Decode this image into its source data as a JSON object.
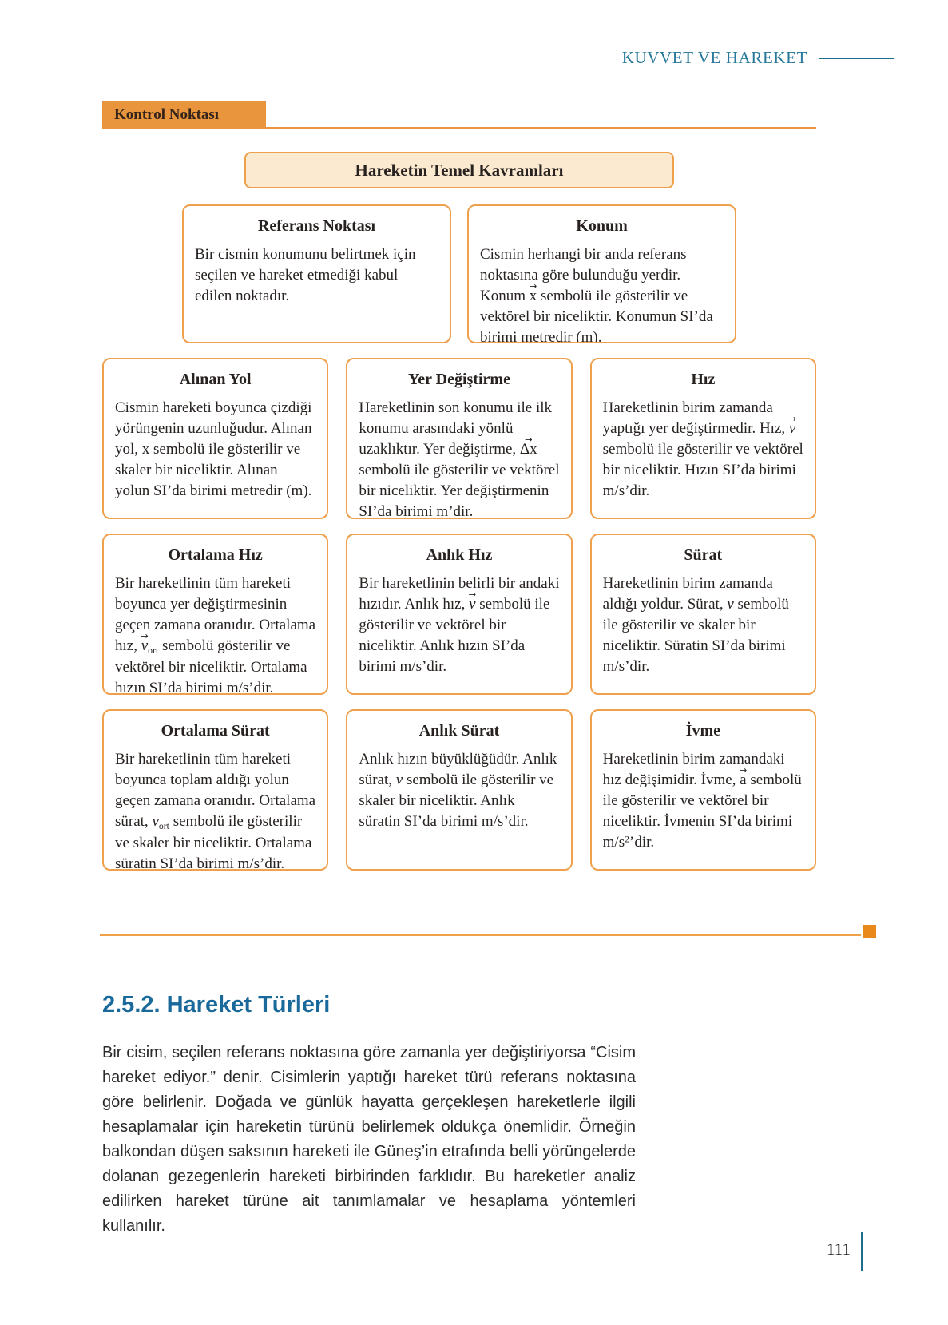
{
  "header": {
    "chapter_title": "KUVVET VE HAREKET"
  },
  "control_point": {
    "label": "Kontrol Noktası"
  },
  "concept_map": {
    "title": "Hareketin Temel Kavramları",
    "boxes": [
      {
        "title": "Referans Noktası",
        "desc": [
          {
            "t": "Bir cismin konumunu belirtmek için seçilen ve hareket etmediği kabul edilen noktadır."
          }
        ]
      },
      {
        "title": "Konum",
        "desc": [
          {
            "t": "Cismin herhangi bir anda referans noktasına göre bulunduğu yerdir. Konum "
          },
          {
            "t": "x",
            "s": "vec"
          },
          {
            "t": " sembolü ile gösterilir ve vektörel bir niceliktir. Konumun SI’da birimi metredir (m)."
          }
        ]
      },
      {
        "title": "Alınan Yol",
        "desc": [
          {
            "t": "Cismin hareketi boyunca çizdiği yörüngenin uzunluğudur. Alınan yol, x sembolü ile gösterilir ve skaler bir niceliktir. Alınan yolun SI’da birimi metredir (m)."
          }
        ]
      },
      {
        "title": "Yer Değiştirme",
        "desc": [
          {
            "t": "Hareketlinin son konumu ile ilk konumu arasındaki yönlü uzaklıktır. Yer değiştirme, "
          },
          {
            "t": "Δx",
            "s": "vec"
          },
          {
            "t": " sembolü ile gösterilir ve vektörel bir niceliktir. Yer değiştirmenin SI’da birimi m’dir."
          }
        ]
      },
      {
        "title": "Hız",
        "desc": [
          {
            "t": "Hareketlinin birim zamanda yaptığı yer değiştirmedir. Hız, "
          },
          {
            "t": "v",
            "s": "i vec"
          },
          {
            "t": " sembolü ile gösterilir ve vektörel bir niceliktir. Hızın SI’da birimi m/s’dir."
          }
        ]
      },
      {
        "title": "Ortalama Hız",
        "desc": [
          {
            "t": "Bir hareketlinin tüm hareketi boyunca yer değiştirmesinin geçen zamana oranıdır. Ortalama hız, "
          },
          {
            "t": "v",
            "s": "i vec"
          },
          {
            "t": "ort",
            "s": "sub"
          },
          {
            "t": " sembolü gösterilir ve vektörel bir niceliktir. Ortalama hızın SI’da birimi m/s’dir."
          }
        ]
      },
      {
        "title": "Anlık Hız",
        "desc": [
          {
            "t": "Bir hareketlinin belirli bir andaki hızıdır. Anlık hız, "
          },
          {
            "t": "v",
            "s": "i vec"
          },
          {
            "t": " sembolü ile gösterilir ve vektörel bir niceliktir. Anlık hızın SI’da birimi m/s’dir."
          }
        ]
      },
      {
        "title": "Sürat",
        "desc": [
          {
            "t": "Hareketlinin birim zamanda aldığı yoldur. Sürat, "
          },
          {
            "t": "v",
            "s": "i"
          },
          {
            "t": " sembolü ile gösterilir ve skaler bir niceliktir. Süratin SI’da birimi m/s’dir."
          }
        ]
      },
      {
        "title": "Ortalama Sürat",
        "desc": [
          {
            "t": "Bir hareketlinin tüm hareketi boyunca toplam aldığı yolun geçen zamana oranıdır. Ortalama sürat, "
          },
          {
            "t": "v",
            "s": "i"
          },
          {
            "t": "ort",
            "s": "sub"
          },
          {
            "t": " sembolü ile gösterilir ve skaler bir niceliktir. Ortalama süratin SI’da birimi m/s’dir."
          }
        ]
      },
      {
        "title": "Anlık Sürat",
        "desc": [
          {
            "t": "Anlık hızın büyüklüğüdür. Anlık sürat, "
          },
          {
            "t": "v",
            "s": "i"
          },
          {
            "t": " sembolü ile gösterilir ve skaler bir niceliktir. Anlık süratin SI’da birimi m/s’dir."
          }
        ]
      },
      {
        "title": "İvme",
        "desc": [
          {
            "t": "Hareketlinin birim zamandaki hız değişimidir. İvme, "
          },
          {
            "t": "a",
            "s": "vec"
          },
          {
            "t": " sembolü ile gösterilir ve vektörel bir niceliktir. İvmenin SI’da birimi m/s"
          },
          {
            "t": "2",
            "s": "sup"
          },
          {
            "t": "’dir."
          }
        ]
      }
    ]
  },
  "section": {
    "heading": "2.5.2. Hareket Türleri",
    "paragraph": "Bir cisim, seçilen referans noktasına göre zamanla yer değiştiriyorsa “Cisim hareket ediyor.” denir. Cisimlerin yaptığı hareket türü referans noktasına göre belirlenir. Doğada ve günlük hayatta gerçekleşen hareketlerle ilgili hesaplamalar için hareketin türünü belirlemek oldukça önemlidir. Örneğin balkondan düşen saksının hareketi ile Güneş’in etrafında belli yörüngelerde dolanan gezegenlerin hareketi birbirinden farklıdır. Bu hareketler analiz edilirken hareket türüne ait tanımlamalar ve hesaplama yöntemleri kullanılır."
  },
  "footer": {
    "page_number": "111"
  },
  "colors": {
    "accent_orange": "#e9953d",
    "box_border_orange": "#efa04c",
    "box_fill_peach": "#fbe9d0",
    "separator_square_orange": "#e9891c",
    "header_teal": "#27789a",
    "rule_teal": "#1d6d8c",
    "section_heading_blue": "#19699a"
  }
}
